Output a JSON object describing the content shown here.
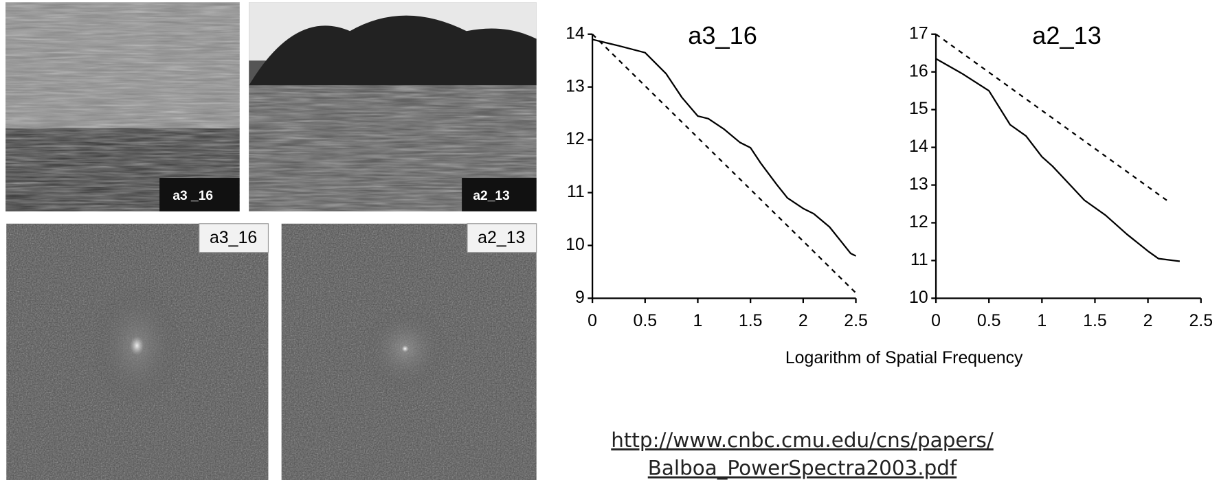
{
  "photos": {
    "top_labels": [
      "a3 _16",
      "a2_13"
    ],
    "spectrum_labels": [
      "a3_16",
      "a2_13"
    ]
  },
  "chart_data": [
    {
      "type": "line",
      "title": "a3_16",
      "xlabel": "Logarithm of Spatial Frequency",
      "xlim": [
        0,
        2.5
      ],
      "xticks": [
        0,
        0.5,
        1,
        1.5,
        2,
        2.5
      ],
      "ylim": [
        9,
        14
      ],
      "yticks": [
        9,
        10,
        11,
        12,
        13,
        14
      ],
      "series": [
        {
          "color": "#000000",
          "dashed": false,
          "x": [
            0,
            0.25,
            0.5,
            0.7,
            0.85,
            1.0,
            1.1,
            1.25,
            1.4,
            1.5,
            1.6,
            1.75,
            1.85,
            2.0,
            2.1,
            2.25,
            2.35,
            2.45,
            2.5
          ],
          "values": [
            13.9,
            13.78,
            13.65,
            13.25,
            12.8,
            12.45,
            12.4,
            12.2,
            11.95,
            11.85,
            11.55,
            11.15,
            10.9,
            10.7,
            10.6,
            10.35,
            10.1,
            9.85,
            9.8
          ]
        },
        {
          "color": "#000000",
          "dashed": true,
          "x": [
            0,
            2.5
          ],
          "values": [
            14,
            9.1
          ]
        }
      ]
    },
    {
      "type": "line",
      "title": "a2_13",
      "xlim": [
        0,
        2.5
      ],
      "xticks": [
        0,
        0.5,
        1,
        1.5,
        2,
        2.5
      ],
      "ylim": [
        10,
        17
      ],
      "yticks": [
        10,
        11,
        12,
        13,
        14,
        15,
        16,
        17
      ],
      "series": [
        {
          "color": "#000000",
          "dashed": false,
          "x": [
            0,
            0.25,
            0.5,
            0.7,
            0.85,
            1.0,
            1.1,
            1.25,
            1.4,
            1.6,
            1.8,
            2.0,
            2.1,
            2.3
          ],
          "values": [
            16.35,
            15.95,
            15.5,
            14.6,
            14.3,
            13.75,
            13.5,
            13.05,
            12.6,
            12.2,
            11.7,
            11.25,
            11.05,
            10.98
          ]
        },
        {
          "color": "#000000",
          "dashed": true,
          "x": [
            0,
            2.2
          ],
          "values": [
            17,
            12.55
          ]
        }
      ]
    }
  ],
  "link": [
    "http://www.cnbc.cmu.edu/cns/papers/",
    "Balboa_PowerSpectra2003.pdf"
  ]
}
